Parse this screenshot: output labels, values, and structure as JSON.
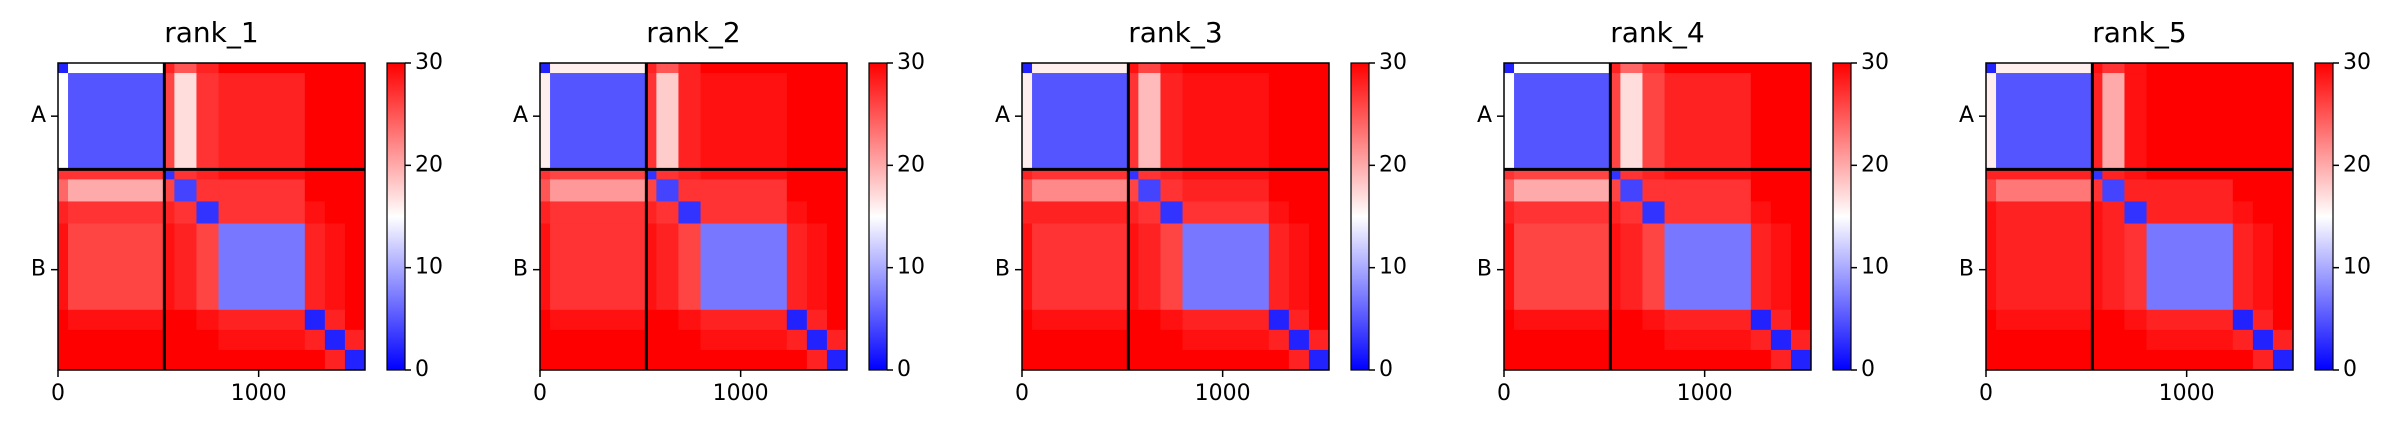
{
  "chart_data": [
    {
      "type": "heatmap",
      "title": "rank_1",
      "colormap": "bwr",
      "clim": [
        0,
        30
      ],
      "cticks": [
        0,
        10,
        20,
        30
      ],
      "xlim": [
        0,
        1530
      ],
      "ylim": [
        1530,
        0
      ],
      "xticks": [
        0,
        1000
      ],
      "yticks": [
        {
          "value": 265,
          "label": "A"
        },
        {
          "value": 1030,
          "label": "B"
        }
      ],
      "chain_breaks": [
        530
      ],
      "bins": [
        0,
        50,
        530,
        580,
        690,
        800,
        1230,
        1330,
        1430,
        1530
      ],
      "matrix": [
        [
          2,
          15,
          28,
          25,
          28,
          30,
          30,
          30,
          30
        ],
        [
          15,
          5,
          26,
          17,
          27,
          28,
          30,
          30,
          30
        ],
        [
          27,
          27,
          3,
          27,
          28,
          29,
          30,
          30,
          30
        ],
        [
          24,
          20,
          26,
          4,
          27,
          27,
          30,
          30,
          30
        ],
        [
          28,
          27,
          28,
          27,
          3,
          27,
          29,
          30,
          30
        ],
        [
          29,
          26,
          29,
          28,
          26,
          7,
          28,
          29,
          30
        ],
        [
          30,
          29,
          30,
          30,
          29,
          28,
          2,
          28,
          30
        ],
        [
          30,
          30,
          30,
          30,
          30,
          29,
          28,
          2,
          28
        ],
        [
          30,
          30,
          30,
          30,
          30,
          30,
          30,
          28,
          2
        ]
      ]
    },
    {
      "type": "heatmap",
      "title": "rank_2",
      "colormap": "bwr",
      "clim": [
        0,
        30
      ],
      "cticks": [
        0,
        10,
        20,
        30
      ],
      "xlim": [
        0,
        1530
      ],
      "ylim": [
        1530,
        0
      ],
      "xticks": [
        0,
        1000
      ],
      "yticks": [
        {
          "value": 265,
          "label": "A"
        },
        {
          "value": 1030,
          "label": "B"
        }
      ],
      "chain_breaks": [
        530
      ],
      "bins": [
        0,
        50,
        530,
        580,
        690,
        800,
        1230,
        1330,
        1430,
        1530
      ],
      "matrix": [
        [
          2,
          16,
          28,
          25,
          28,
          30,
          30,
          30,
          30
        ],
        [
          16,
          5,
          27,
          18,
          28,
          29,
          30,
          30,
          30
        ],
        [
          27,
          26,
          3,
          27,
          28,
          29,
          30,
          30,
          30
        ],
        [
          25,
          21,
          26,
          4,
          27,
          27,
          30,
          30,
          30
        ],
        [
          28,
          27,
          28,
          27,
          3,
          27,
          29,
          30,
          30
        ],
        [
          29,
          27,
          29,
          28,
          26,
          7,
          28,
          29,
          30
        ],
        [
          30,
          29,
          30,
          30,
          29,
          28,
          2,
          28,
          30
        ],
        [
          30,
          30,
          30,
          30,
          30,
          29,
          28,
          2,
          28
        ],
        [
          30,
          30,
          30,
          30,
          30,
          30,
          30,
          28,
          2
        ]
      ]
    },
    {
      "type": "heatmap",
      "title": "rank_3",
      "colormap": "bwr",
      "clim": [
        0,
        30
      ],
      "cticks": [
        0,
        10,
        20,
        30
      ],
      "xlim": [
        0,
        1530
      ],
      "ylim": [
        1530,
        0
      ],
      "xticks": [
        0,
        1000
      ],
      "yticks": [
        {
          "value": 265,
          "label": "A"
        },
        {
          "value": 1030,
          "label": "B"
        }
      ],
      "chain_breaks": [
        530
      ],
      "bins": [
        0,
        50,
        530,
        580,
        690,
        800,
        1230,
        1330,
        1430,
        1530
      ],
      "matrix": [
        [
          2,
          16,
          29,
          26,
          29,
          30,
          30,
          30,
          30
        ],
        [
          16,
          5,
          27,
          19,
          28,
          29,
          30,
          30,
          30
        ],
        [
          28,
          27,
          3,
          27,
          28,
          29,
          30,
          30,
          30
        ],
        [
          25,
          22,
          26,
          4,
          27,
          28,
          30,
          30,
          30
        ],
        [
          28,
          28,
          28,
          27,
          3,
          27,
          29,
          30,
          30
        ],
        [
          29,
          27,
          29,
          28,
          26,
          7,
          28,
          29,
          30
        ],
        [
          30,
          29,
          30,
          30,
          29,
          28,
          2,
          28,
          30
        ],
        [
          30,
          30,
          30,
          30,
          30,
          29,
          28,
          2,
          28
        ],
        [
          30,
          30,
          30,
          30,
          30,
          30,
          30,
          28,
          2
        ]
      ]
    },
    {
      "type": "heatmap",
      "title": "rank_4",
      "colormap": "bwr",
      "clim": [
        0,
        30
      ],
      "cticks": [
        0,
        10,
        20,
        30
      ],
      "xlim": [
        0,
        1530
      ],
      "ylim": [
        1530,
        0
      ],
      "xticks": [
        0,
        1000
      ],
      "yticks": [
        {
          "value": 265,
          "label": "A"
        },
        {
          "value": 1030,
          "label": "B"
        }
      ],
      "chain_breaks": [
        530
      ],
      "bins": [
        0,
        50,
        530,
        580,
        690,
        800,
        1230,
        1330,
        1430,
        1530
      ],
      "matrix": [
        [
          2,
          15,
          28,
          24,
          27,
          30,
          30,
          30,
          30
        ],
        [
          15,
          5,
          26,
          17,
          26,
          28,
          30,
          30,
          30
        ],
        [
          27,
          26,
          3,
          27,
          28,
          29,
          30,
          30,
          30
        ],
        [
          24,
          20,
          26,
          4,
          27,
          27,
          30,
          30,
          30
        ],
        [
          28,
          27,
          28,
          27,
          3,
          27,
          29,
          30,
          30
        ],
        [
          29,
          26,
          29,
          28,
          26,
          7,
          28,
          29,
          30
        ],
        [
          30,
          29,
          30,
          30,
          29,
          28,
          2,
          28,
          30
        ],
        [
          30,
          30,
          30,
          30,
          30,
          29,
          28,
          2,
          28
        ],
        [
          30,
          30,
          30,
          30,
          30,
          30,
          30,
          28,
          2
        ]
      ]
    },
    {
      "type": "heatmap",
      "title": "rank_5",
      "colormap": "bwr",
      "clim": [
        0,
        30
      ],
      "cticks": [
        0,
        10,
        20,
        30
      ],
      "xlim": [
        0,
        1530
      ],
      "ylim": [
        1530,
        0
      ],
      "xticks": [
        0,
        1000
      ],
      "yticks": [
        {
          "value": 265,
          "label": "A"
        },
        {
          "value": 1030,
          "label": "B"
        }
      ],
      "chain_breaks": [
        530
      ],
      "bins": [
        0,
        50,
        530,
        580,
        690,
        800,
        1230,
        1330,
        1430,
        1530
      ],
      "matrix": [
        [
          2,
          16,
          29,
          27,
          29,
          30,
          30,
          30,
          30
        ],
        [
          16,
          5,
          28,
          20,
          29,
          30,
          30,
          30,
          30
        ],
        [
          28,
          28,
          3,
          28,
          29,
          30,
          30,
          30,
          30
        ],
        [
          26,
          23,
          27,
          4,
          28,
          28,
          30,
          30,
          30
        ],
        [
          29,
          28,
          29,
          28,
          3,
          28,
          29,
          30,
          30
        ],
        [
          29,
          28,
          29,
          28,
          27,
          7,
          28,
          29,
          30
        ],
        [
          30,
          29,
          30,
          30,
          29,
          28,
          2,
          28,
          30
        ],
        [
          30,
          30,
          30,
          30,
          30,
          29,
          28,
          2,
          28
        ],
        [
          30,
          30,
          30,
          30,
          30,
          30,
          30,
          28,
          2
        ]
      ]
    }
  ]
}
